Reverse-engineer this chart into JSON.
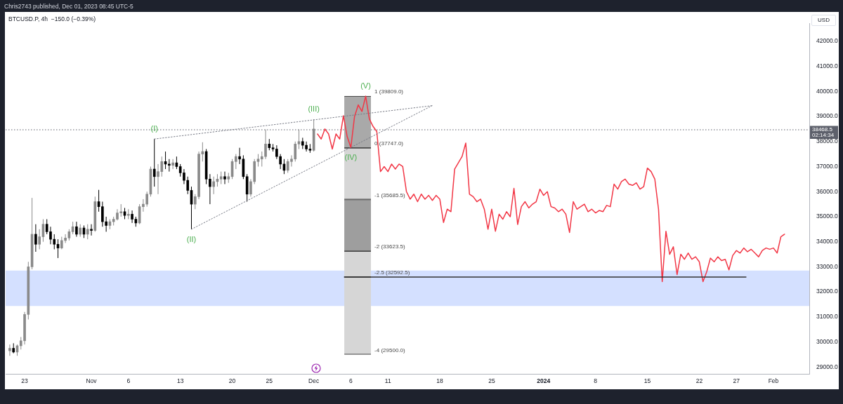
{
  "chart_data": {
    "type": "candlestick",
    "title": "BTCUSD.P, 4h  −150.0 (−0.39%)",
    "ylabel": "USD",
    "colors": [
      "#8a8a8a",
      "#000000",
      "#8a8a8a",
      "#8a8a8a",
      "#8a8a8a",
      "#8a8a8a",
      "#8a8a8a",
      "#000000",
      "#8a8a8a",
      "#8a8a8a",
      "#000000",
      "#000000",
      "#000000",
      "#000000",
      "#8a8a8a",
      "#8a8a8a",
      "#8a8a8a",
      "#8a8a8a",
      "#000000",
      "#8a8a8a",
      "#000000",
      "#8a8a8a",
      "#000000",
      "#8a8a8a",
      "#000000",
      "#000000",
      "#000000",
      "#8a8a8a",
      "#8a8a8a",
      "#8a8a8a",
      "#8a8a8a",
      "#000000",
      "#8a8a8a",
      "#000000",
      "#000000",
      "#8a8a8a",
      "#8a8a8a",
      "#8a8a8a",
      "#8a8a8a",
      "#000000",
      "#8a8a8a",
      "#8a8a8a",
      "#000000",
      "#000000",
      "#8a8a8a",
      "#000000",
      "#000000",
      "#000000",
      "#000000",
      "#000000",
      "#8a8a8a",
      "#8a8a8a",
      "#8a8a8a",
      "#000000",
      "#000000",
      "#8a8a8a",
      "#8a8a8a",
      "#8a8a8a",
      "#000000",
      "#8a8a8a",
      "#8a8a8a",
      "#8a8a8a",
      "#000000",
      "#000000",
      "#000000",
      "#8a8a8a",
      "#8a8a8a",
      "#8a8a8a",
      "#8a8a8a",
      "#8a8a8a",
      "#000000",
      "#000000",
      "#000000",
      "#000000",
      "#000000",
      "#8a8a8a",
      "#8a8a8a",
      "#8a8a8a",
      "#8a8a8a",
      "#000000",
      "#000000",
      "#000000",
      "#8a8a8a"
    ],
    "annotations": [
      "Chris2743 published, Dec 01, 2023 08:45 UTC-5",
      {
        "text": "(I)",
        "x": "2023-11-09T12:00",
        "y": 38100
      },
      {
        "text": "(II)",
        "x": "2023-11-14T12:00",
        "y": 34500
      },
      {
        "text": "(III)",
        "x": "2023-12-01T00:00",
        "y": 38890
      },
      {
        "text": "(IV)",
        "x": "2023-12-06T00:00",
        "y": 37760
      },
      {
        "text": "(V)",
        "x": "2023-12-08T00:00",
        "y": 39809
      },
      {
        "text": "1 (39809.0)",
        "x": "2023-12-06T22:00",
        "y": 39809
      },
      {
        "text": "0 (37747.0)",
        "x": "2023-12-06T22:00",
        "y": 37747
      },
      {
        "text": "-1 (35685.5)",
        "x": "2023-12-06T22:00",
        "y": 35685.5
      },
      {
        "text": "-2 (33623.5)",
        "x": "2023-12-06T22:00",
        "y": 33623.5
      },
      {
        "text": "-2.5 (32592.5)",
        "x": "2023-12-06T22:00",
        "y": 32592.5
      },
      {
        "text": "-4 (29500.0)",
        "x": "2023-12-06T22:00",
        "y": 29500
      }
    ],
    "x": [
      "2023-10-21T00:00",
      "2023-10-21T12:00",
      "2023-10-22T00:00",
      "2023-10-22T12:00",
      "2023-10-23T00:00",
      "2023-10-23T12:00",
      "2023-10-24T00:00",
      "2023-10-24T12:00",
      "2023-10-25T00:00",
      "2023-10-25T12:00",
      "2023-10-26T00:00",
      "2023-10-26T12:00",
      "2023-10-27T00:00",
      "2023-10-27T12:00",
      "2023-10-28T00:00",
      "2023-10-28T12:00",
      "2023-10-29T00:00",
      "2023-10-29T12:00",
      "2023-10-30T00:00",
      "2023-10-30T12:00",
      "2023-10-31T00:00",
      "2023-10-31T12:00",
      "2023-11-01T00:00",
      "2023-11-01T12:00",
      "2023-11-02T00:00",
      "2023-11-02T12:00",
      "2023-11-03T00:00",
      "2023-11-03T12:00",
      "2023-11-04T00:00",
      "2023-11-04T12:00",
      "2023-11-05T00:00",
      "2023-11-05T12:00",
      "2023-11-06T00:00",
      "2023-11-06T12:00",
      "2023-11-07T00:00",
      "2023-11-07T12:00",
      "2023-11-08T00:00",
      "2023-11-08T12:00",
      "2023-11-09T00:00",
      "2023-11-09T12:00",
      "2023-11-10T00:00",
      "2023-11-10T12:00",
      "2023-11-11T00:00",
      "2023-11-11T12:00",
      "2023-11-12T00:00",
      "2023-11-12T12:00",
      "2023-11-13T00:00",
      "2023-11-13T12:00",
      "2023-11-14T00:00",
      "2023-11-14T12:00",
      "2023-11-15T00:00",
      "2023-11-15T12:00",
      "2023-11-16T00:00",
      "2023-11-16T12:00",
      "2023-11-17T00:00",
      "2023-11-17T12:00",
      "2023-11-18T00:00",
      "2023-11-18T12:00",
      "2023-11-19T00:00",
      "2023-11-19T12:00",
      "2023-11-20T00:00",
      "2023-11-20T12:00",
      "2023-11-21T00:00",
      "2023-11-21T12:00",
      "2023-11-22T00:00",
      "2023-11-22T12:00",
      "2023-11-23T00:00",
      "2023-11-23T12:00",
      "2023-11-24T00:00",
      "2023-11-24T12:00",
      "2023-11-25T00:00",
      "2023-11-25T12:00",
      "2023-11-26T00:00",
      "2023-11-26T12:00",
      "2023-11-27T00:00",
      "2023-11-27T12:00",
      "2023-11-28T00:00",
      "2023-11-28T12:00",
      "2023-11-29T00:00",
      "2023-11-29T12:00",
      "2023-11-30T00:00",
      "2023-11-30T12:00",
      "2023-12-01T00:00"
    ],
    "ohlc": [
      [
        29650,
        29900,
        29450,
        29750
      ],
      [
        29750,
        29950,
        29550,
        29600
      ],
      [
        29600,
        29900,
        29450,
        29850
      ],
      [
        29850,
        30200,
        29700,
        30050
      ],
      [
        30050,
        31200,
        29900,
        31100
      ],
      [
        31100,
        33200,
        30900,
        33000
      ],
      [
        33000,
        35750,
        32900,
        34300
      ],
      [
        34300,
        34700,
        33600,
        33900
      ],
      [
        33900,
        34500,
        33700,
        34200
      ],
      [
        34200,
        34900,
        34000,
        34700
      ],
      [
        34700,
        34900,
        34300,
        34400
      ],
      [
        34400,
        34600,
        33900,
        34100
      ],
      [
        34100,
        34300,
        33700,
        33900
      ],
      [
        33900,
        34100,
        33350,
        33750
      ],
      [
        33750,
        34200,
        33700,
        34050
      ],
      [
        34050,
        34300,
        33950,
        34150
      ],
      [
        34150,
        34500,
        34050,
        34400
      ],
      [
        34400,
        34800,
        34300,
        34600
      ],
      [
        34600,
        34800,
        34200,
        34300
      ],
      [
        34300,
        34700,
        34200,
        34550
      ],
      [
        34550,
        34650,
        34150,
        34300
      ],
      [
        34300,
        34700,
        34100,
        34500
      ],
      [
        34500,
        34700,
        34250,
        34450
      ],
      [
        34450,
        35800,
        34400,
        35600
      ],
      [
        35600,
        36070,
        35200,
        35400
      ],
      [
        35400,
        35600,
        34600,
        34800
      ],
      [
        34800,
        35000,
        34400,
        34650
      ],
      [
        34650,
        34900,
        34500,
        34800
      ],
      [
        34800,
        35000,
        34650,
        34900
      ],
      [
        34900,
        35300,
        34850,
        35150
      ],
      [
        35150,
        35500,
        35000,
        35200
      ],
      [
        35200,
        35350,
        34900,
        35050
      ],
      [
        35050,
        35300,
        34900,
        35100
      ],
      [
        35100,
        35250,
        34750,
        34900
      ],
      [
        34900,
        35000,
        34600,
        34750
      ],
      [
        34750,
        35500,
        34700,
        35400
      ],
      [
        35400,
        35700,
        35200,
        35500
      ],
      [
        35500,
        36000,
        35400,
        35900
      ],
      [
        35900,
        37000,
        35800,
        36900
      ],
      [
        36900,
        38100,
        36200,
        36600
      ],
      [
        36600,
        37100,
        35900,
        36800
      ],
      [
        36800,
        37400,
        36600,
        37200
      ],
      [
        37200,
        37600,
        36900,
        37100
      ],
      [
        37100,
        37300,
        36800,
        37050
      ],
      [
        37050,
        37300,
        36900,
        37150
      ],
      [
        37150,
        37400,
        36900,
        37000
      ],
      [
        37000,
        37100,
        36600,
        36750
      ],
      [
        36750,
        36900,
        36300,
        36450
      ],
      [
        36450,
        36600,
        35900,
        36050
      ],
      [
        36050,
        36200,
        34500,
        35500
      ],
      [
        35500,
        35900,
        35300,
        35800
      ],
      [
        35800,
        37600,
        35700,
        37500
      ],
      [
        37500,
        37970,
        37200,
        37600
      ],
      [
        37600,
        37700,
        36300,
        36500
      ],
      [
        36500,
        36700,
        35500,
        36200
      ],
      [
        36200,
        36600,
        35900,
        36400
      ],
      [
        36400,
        36700,
        36200,
        36500
      ],
      [
        36500,
        36800,
        36300,
        36600
      ],
      [
        36600,
        36800,
        36300,
        36500
      ],
      [
        36500,
        36750,
        36350,
        36600
      ],
      [
        36600,
        37300,
        36500,
        37200
      ],
      [
        37200,
        37500,
        36900,
        37400
      ],
      [
        37400,
        37750,
        37100,
        37300
      ],
      [
        37300,
        37450,
        36500,
        36600
      ],
      [
        36600,
        36700,
        35600,
        35900
      ],
      [
        35900,
        36500,
        35800,
        36400
      ],
      [
        36400,
        37300,
        36300,
        37200
      ],
      [
        37200,
        37500,
        37000,
        37300
      ],
      [
        37300,
        37600,
        37000,
        37400
      ],
      [
        37400,
        38480,
        37300,
        37900
      ],
      [
        37900,
        38100,
        37650,
        37750
      ],
      [
        37750,
        37900,
        37600,
        37700
      ],
      [
        37700,
        37850,
        37300,
        37400
      ],
      [
        37400,
        37500,
        36900,
        37100
      ],
      [
        37100,
        37300,
        36700,
        36850
      ],
      [
        36850,
        37300,
        36750,
        37200
      ],
      [
        37200,
        37450,
        37000,
        37300
      ],
      [
        37300,
        38000,
        37200,
        37900
      ],
      [
        37900,
        38480,
        37700,
        38000
      ],
      [
        38000,
        38150,
        37700,
        37850
      ],
      [
        37850,
        38000,
        37600,
        37700
      ],
      [
        37700,
        37900,
        37550,
        37650
      ],
      [
        37650,
        38890,
        37600,
        38500
      ]
    ],
    "series": [
      {
        "type": "bar",
        "x": [
          "2023-12-06T22:00"
        ],
        "base": [
          37747
        ],
        "values": [
          2062
        ],
        "color": "#a9a9a9"
      },
      {
        "type": "bar",
        "x": [
          "2023-12-06T22:00"
        ],
        "base": [
          35685.5
        ],
        "values": [
          2061.5
        ],
        "color": "#d6d6d6"
      },
      {
        "type": "bar",
        "x": [
          "2023-12-06T22:00"
        ],
        "base": [
          33623.5
        ],
        "values": [
          2062
        ],
        "color": "#9e9e9e"
      },
      {
        "type": "bar",
        "x": [
          "2023-12-06T22:00"
        ],
        "base": [
          32592.5
        ],
        "values": [
          1031
        ],
        "color": "#d6d6d6"
      },
      {
        "type": "bar",
        "x": [
          "2023-12-06T22:00"
        ],
        "base": [
          29500
        ],
        "values": [
          3092.5
        ],
        "color": "#d6d6d6"
      },
      {
        "type": "line",
        "color": "#787b86",
        "line_style": "dotted",
        "x": [
          "2023-11-09T12:00",
          "2023-12-16T23:00"
        ],
        "values": [
          38100,
          39430
        ]
      },
      {
        "type": "line",
        "color": "#787b86",
        "line_style": "dotted",
        "x": [
          "2023-11-14T12:00",
          "2023-12-16T23:00"
        ],
        "values": [
          34500,
          39430
        ]
      },
      {
        "type": "line",
        "color": "#333333",
        "x": [
          "2023-12-05T03:00",
          "2024-01-28T07:00"
        ],
        "values": [
          32592.5,
          32592.5
        ]
      },
      {
        "type": "line",
        "color": "#f23645",
        "x": [
          "2023-12-01T12:00",
          "2023-12-02T00:00",
          "2023-12-02T12:00",
          "2023-12-03T00:00",
          "2023-12-03T12:00",
          "2023-12-04T00:00",
          "2023-12-04T12:00",
          "2023-12-05T00:00",
          "2023-12-05T12:00",
          "2023-12-06T00:00",
          "2023-12-06T12:00",
          "2023-12-07T00:00",
          "2023-12-07T12:00",
          "2023-12-08T00:00",
          "2023-12-08T12:00",
          "2023-12-09T00:00",
          "2023-12-09T12:00",
          "2023-12-10T00:00",
          "2023-12-10T12:00",
          "2023-12-11T00:00",
          "2023-12-11T12:00",
          "2023-12-12T00:00",
          "2023-12-12T12:00",
          "2023-12-13T00:00",
          "2023-12-13T12:00",
          "2023-12-14T00:00",
          "2023-12-14T12:00",
          "2023-12-15T00:00",
          "2023-12-15T12:00",
          "2023-12-16T00:00",
          "2023-12-16T12:00",
          "2023-12-17T00:00",
          "2023-12-17T12:00",
          "2023-12-18T00:00",
          "2023-12-18T12:00",
          "2023-12-19T00:00",
          "2023-12-19T12:00",
          "2023-12-20T00:00",
          "2023-12-20T12:00",
          "2023-12-21T00:00",
          "2023-12-21T12:00",
          "2023-12-22T00:00",
          "2023-12-22T12:00",
          "2023-12-23T00:00",
          "2023-12-23T12:00",
          "2023-12-24T00:00",
          "2023-12-24T12:00",
          "2023-12-25T00:00",
          "2023-12-25T12:00",
          "2023-12-26T00:00",
          "2023-12-26T12:00",
          "2023-12-27T00:00",
          "2023-12-27T12:00",
          "2023-12-28T00:00",
          "2023-12-28T12:00",
          "2023-12-29T00:00",
          "2023-12-29T12:00",
          "2023-12-30T00:00",
          "2023-12-30T12:00",
          "2023-12-31T00:00",
          "2023-12-31T12:00",
          "2024-01-01T00:00",
          "2024-01-01T12:00",
          "2024-01-02T00:00",
          "2024-01-02T12:00",
          "2024-01-03T00:00",
          "2024-01-03T12:00",
          "2024-01-04T00:00",
          "2024-01-04T12:00",
          "2024-01-05T00:00",
          "2024-01-05T12:00",
          "2024-01-06T00:00",
          "2024-01-06T12:00",
          "2024-01-07T00:00",
          "2024-01-07T12:00",
          "2024-01-08T00:00",
          "2024-01-08T12:00",
          "2024-01-09T00:00",
          "2024-01-09T12:00",
          "2024-01-10T00:00",
          "2024-01-10T12:00",
          "2024-01-11T00:00",
          "2024-01-11T12:00",
          "2024-01-12T00:00",
          "2024-01-12T12:00",
          "2024-01-13T00:00",
          "2024-01-13T12:00",
          "2024-01-14T00:00",
          "2024-01-14T12:00",
          "2024-01-15T00:00",
          "2024-01-15T12:00",
          "2024-01-16T00:00",
          "2024-01-16T12:00",
          "2024-01-17T00:00",
          "2024-01-17T12:00",
          "2024-01-18T00:00",
          "2024-01-18T12:00",
          "2024-01-19T00:00",
          "2024-01-19T12:00",
          "2024-01-20T00:00",
          "2024-01-20T12:00",
          "2024-01-21T00:00",
          "2024-01-21T12:00",
          "2024-01-22T00:00",
          "2024-01-22T12:00",
          "2024-01-23T00:00",
          "2024-01-23T12:00",
          "2024-01-24T00:00",
          "2024-01-24T12:00",
          "2024-01-25T00:00",
          "2024-01-25T12:00",
          "2024-01-26T00:00",
          "2024-01-26T12:00",
          "2024-01-27T00:00",
          "2024-01-27T12:00",
          "2024-01-28T00:00",
          "2024-01-28T12:00",
          "2024-01-29T00:00",
          "2024-01-29T12:00",
          "2024-01-30T00:00",
          "2024-01-30T12:00",
          "2024-01-31T00:00",
          "2024-01-31T12:00",
          "2024-02-01T00:00",
          "2024-02-01T12:00",
          "2024-02-02T00:00",
          "2024-02-02T12:00"
        ],
        "values": [
          38300,
          38100,
          38500,
          38300,
          37700,
          38300,
          38100,
          39030,
          38200,
          37760,
          39000,
          39460,
          39200,
          39809,
          38900,
          38600,
          38400,
          36800,
          37000,
          36800,
          37100,
          36900,
          37100,
          37000,
          36000,
          35700,
          35900,
          35600,
          35900,
          35700,
          35850,
          35650,
          35850,
          35700,
          34770,
          35300,
          35200,
          36900,
          37150,
          37400,
          37940,
          35900,
          35800,
          35600,
          35700,
          35300,
          34500,
          35300,
          34420,
          35100,
          34900,
          35200,
          35000,
          36130,
          34690,
          35400,
          35600,
          35350,
          35500,
          35600,
          36100,
          35850,
          36000,
          35400,
          35350,
          35200,
          35300,
          35100,
          34370,
          35600,
          35300,
          35400,
          35500,
          35200,
          35300,
          35150,
          35250,
          35200,
          35450,
          35400,
          36300,
          36100,
          36400,
          36500,
          36300,
          36250,
          36350,
          36100,
          36200,
          36940,
          36800,
          36500,
          35300,
          32410,
          34420,
          33500,
          33800,
          32690,
          33500,
          33300,
          33550,
          33300,
          33400,
          33200,
          32410,
          32800,
          33350,
          33200,
          33400,
          33250,
          33300,
          32880,
          33450,
          33650,
          33550,
          33750,
          33600,
          33700,
          33550,
          33400,
          33650,
          33750,
          33700,
          33750,
          33550,
          34200,
          34300
        ]
      }
    ],
    "ref_lines": [
      {
        "axis": "y",
        "value": 38468.5,
        "label": "38468.5\n02:14:34",
        "color": "#5d606b",
        "line_style": "dotted"
      }
    ],
    "bands": [
      {
        "axis": "y",
        "from": 31440,
        "to": 32850,
        "color": "#d4e0ff"
      }
    ],
    "xlim": [
      "2023-10-20T10:30",
      "2024-02-05T20:00"
    ],
    "xticks": [
      {
        "value": "2023-10-23",
        "label": "23"
      },
      {
        "value": "2023-11-01",
        "label": "Nov"
      },
      {
        "value": "2023-11-06",
        "label": "6"
      },
      {
        "value": "2023-11-13",
        "label": "13"
      },
      {
        "value": "2023-11-20",
        "label": "20"
      },
      {
        "value": "2023-11-25",
        "label": "25"
      },
      {
        "value": "2023-12-01",
        "label": "Dec"
      },
      {
        "value": "2023-12-06",
        "label": "6"
      },
      {
        "value": "2023-12-11",
        "label": "11"
      },
      {
        "value": "2023-12-18",
        "label": "18"
      },
      {
        "value": "2023-12-25",
        "label": "25"
      },
      {
        "value": "2024-01-01",
        "label": "2024"
      },
      {
        "value": "2024-01-08",
        "label": "8"
      },
      {
        "value": "2024-01-15",
        "label": "15"
      },
      {
        "value": "2024-01-22",
        "label": "22"
      },
      {
        "value": "2024-01-27",
        "label": "27"
      },
      {
        "value": "2024-02-01",
        "label": "Feb"
      }
    ],
    "ylim": [
      28730,
      42720
    ],
    "yticks": [
      {
        "value": 29000,
        "label": "29000.0"
      },
      {
        "value": 30000,
        "label": "30000.0"
      },
      {
        "value": 31000,
        "label": "31000.0"
      },
      {
        "value": 32000,
        "label": "32000.0"
      },
      {
        "value": 33000,
        "label": "33000.0"
      },
      {
        "value": 34000,
        "label": "34000.0"
      },
      {
        "value": 35000,
        "label": "35000.0"
      },
      {
        "value": 36000,
        "label": "36000.0"
      },
      {
        "value": 37000,
        "label": "37000.0"
      },
      {
        "value": 38000,
        "label": "38000.0"
      },
      {
        "value": 39000,
        "label": "39000.0"
      },
      {
        "value": 40000,
        "label": "40000.0"
      },
      {
        "value": 41000,
        "label": "41000.0"
      },
      {
        "value": 42000,
        "label": "42000.0"
      }
    ]
  }
}
